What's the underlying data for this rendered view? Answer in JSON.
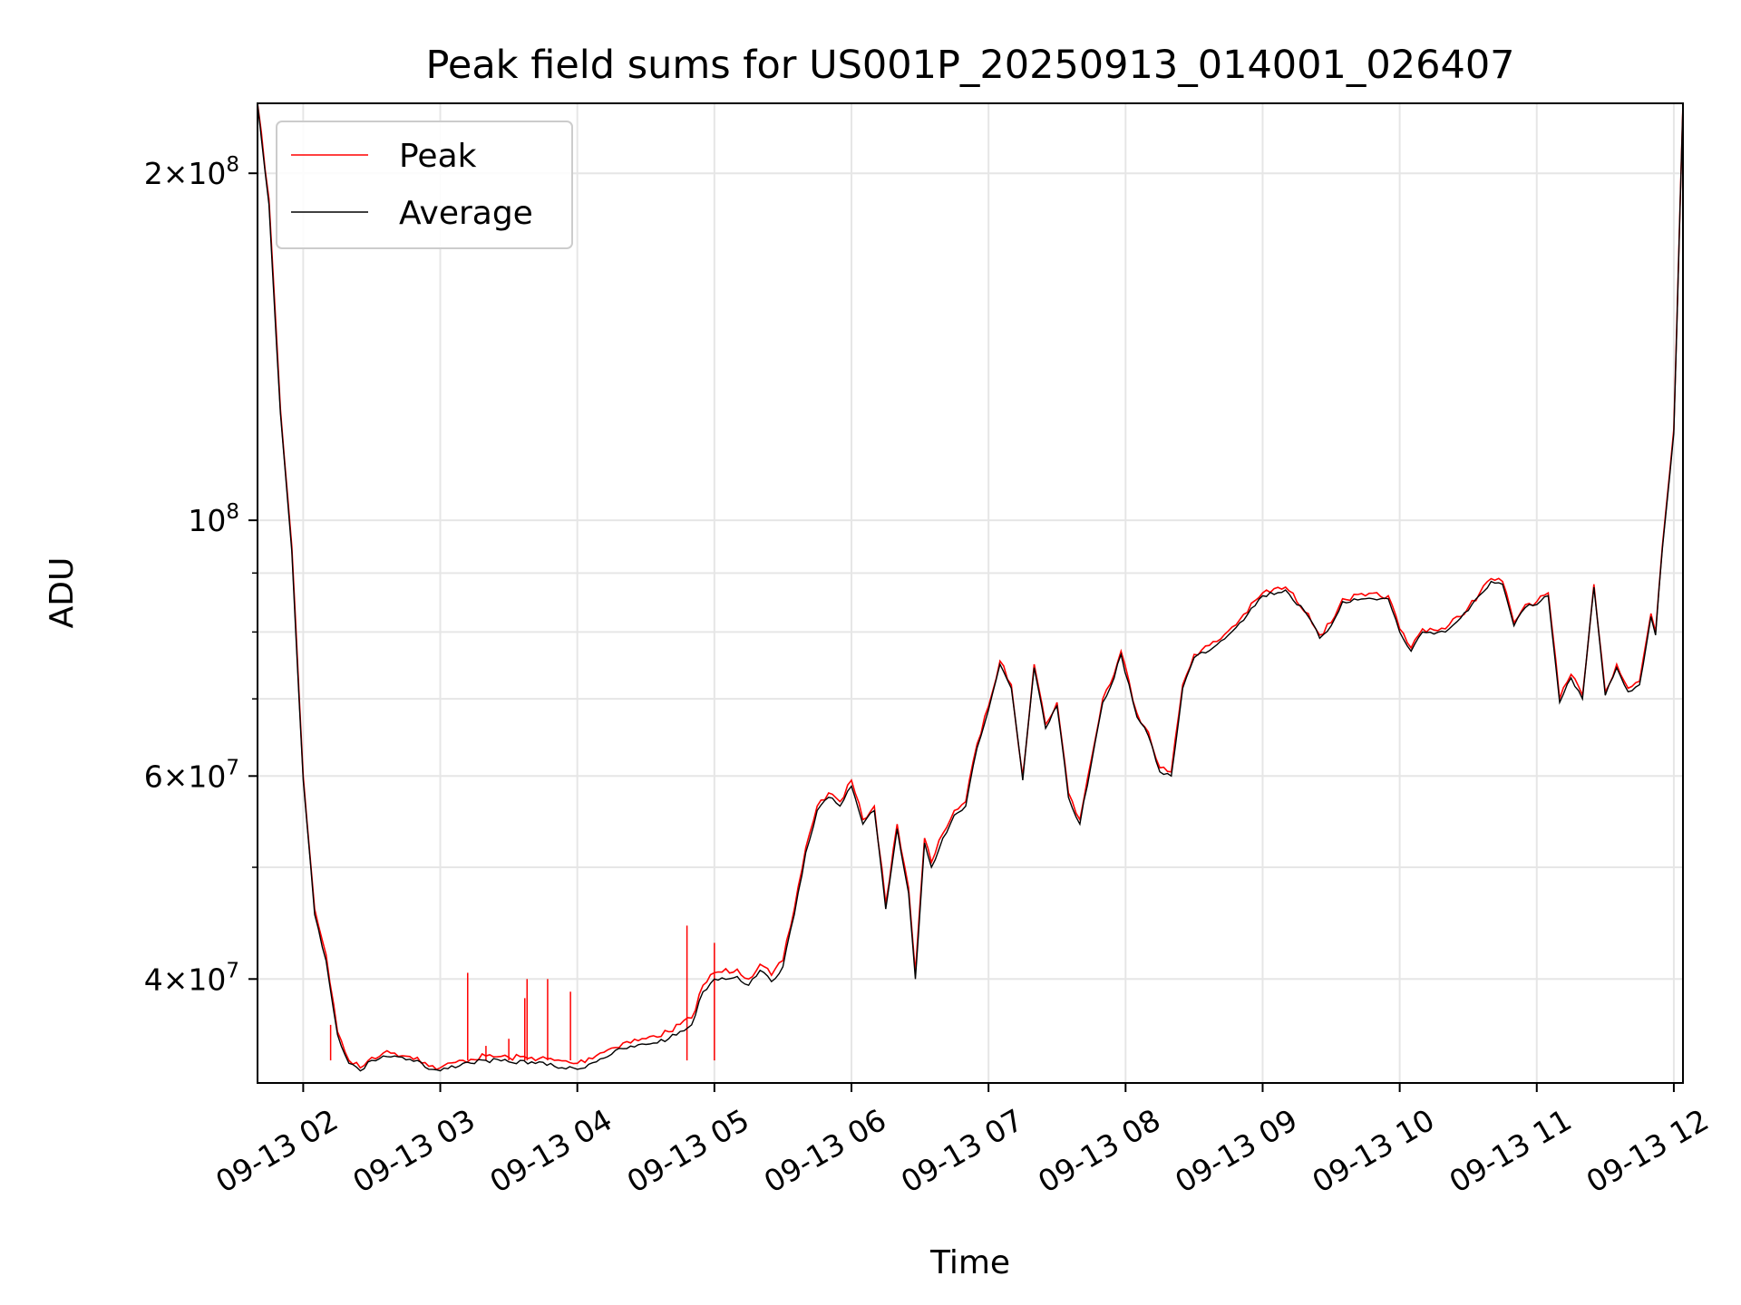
{
  "chart_data": {
    "type": "line",
    "title": "Peak field sums for US001P_20250913_014001_026407",
    "xlabel": "Time",
    "ylabel": "ADU",
    "yscale": "log",
    "ylim": [
      32500000,
      230000000
    ],
    "xlim": [
      "2025-09-13 01:40",
      "2025-09-13 12:04"
    ],
    "grid": true,
    "legend_position": "upper-left",
    "x_ticks": [
      {
        "x": "2025-09-13 02:00",
        "label": "09-13 02"
      },
      {
        "x": "2025-09-13 03:00",
        "label": "09-13 03"
      },
      {
        "x": "2025-09-13 04:00",
        "label": "09-13 04"
      },
      {
        "x": "2025-09-13 05:00",
        "label": "09-13 05"
      },
      {
        "x": "2025-09-13 06:00",
        "label": "09-13 06"
      },
      {
        "x": "2025-09-13 07:00",
        "label": "09-13 07"
      },
      {
        "x": "2025-09-13 08:00",
        "label": "09-13 08"
      },
      {
        "x": "2025-09-13 09:00",
        "label": "09-13 09"
      },
      {
        "x": "2025-09-13 10:00",
        "label": "09-13 10"
      },
      {
        "x": "2025-09-13 11:00",
        "label": "09-13 11"
      },
      {
        "x": "2025-09-13 12:00",
        "label": "09-13 12"
      }
    ],
    "y_ticks": [
      {
        "value": 40000000,
        "base": "4×10",
        "exp": "7"
      },
      {
        "value": 60000000,
        "base": "6×10",
        "exp": "7"
      },
      {
        "value": 100000000,
        "base": "10",
        "exp": "8"
      },
      {
        "value": 200000000,
        "base": "2×10",
        "exp": "8"
      }
    ],
    "y_minor_grid": [
      50000000,
      70000000,
      80000000,
      90000000
    ],
    "series": [
      {
        "name": "Peak",
        "color": "#ff0000",
        "points": [
          [
            "2025-09-13 01:40",
            230000000
          ],
          [
            "2025-09-13 01:45",
            190000000
          ],
          [
            "2025-09-13 01:50",
            125000000
          ],
          [
            "2025-09-13 01:55",
            95000000
          ],
          [
            "2025-09-13 02:00",
            60000000
          ],
          [
            "2025-09-13 02:05",
            46000000
          ],
          [
            "2025-09-13 02:10",
            42000000
          ],
          [
            "2025-09-13 02:15",
            36000000
          ],
          [
            "2025-09-13 02:20",
            34000000
          ],
          [
            "2025-09-13 02:25",
            33500000
          ],
          [
            "2025-09-13 02:30",
            34200000
          ],
          [
            "2025-09-13 02:35",
            34500000
          ],
          [
            "2025-09-13 02:40",
            34500000
          ],
          [
            "2025-09-13 02:50",
            34200000
          ],
          [
            "2025-09-13 02:55",
            33600000
          ],
          [
            "2025-09-13 03:00",
            33500000
          ],
          [
            "2025-09-13 03:10",
            34000000
          ],
          [
            "2025-09-13 03:20",
            34300000
          ],
          [
            "2025-09-13 03:30",
            34200000
          ],
          [
            "2025-09-13 03:40",
            34200000
          ],
          [
            "2025-09-13 03:50",
            34000000
          ],
          [
            "2025-09-13 04:00",
            33800000
          ],
          [
            "2025-09-13 04:10",
            34500000
          ],
          [
            "2025-09-13 04:20",
            35200000
          ],
          [
            "2025-09-13 04:30",
            35500000
          ],
          [
            "2025-09-13 04:40",
            36000000
          ],
          [
            "2025-09-13 04:50",
            37000000
          ],
          [
            "2025-09-13 04:55",
            39500000
          ],
          [
            "2025-09-13 05:00",
            40500000
          ],
          [
            "2025-09-13 05:10",
            40800000
          ],
          [
            "2025-09-13 05:15",
            40000000
          ],
          [
            "2025-09-13 05:20",
            41200000
          ],
          [
            "2025-09-13 05:25",
            40300000
          ],
          [
            "2025-09-13 05:30",
            41500000
          ],
          [
            "2025-09-13 05:35",
            46000000
          ],
          [
            "2025-09-13 05:40",
            52000000
          ],
          [
            "2025-09-13 05:45",
            56500000
          ],
          [
            "2025-09-13 05:50",
            58000000
          ],
          [
            "2025-09-13 05:55",
            57000000
          ],
          [
            "2025-09-13 06:00",
            59500000
          ],
          [
            "2025-09-13 06:05",
            55000000
          ],
          [
            "2025-09-13 06:10",
            56500000
          ],
          [
            "2025-09-13 06:15",
            46500000
          ],
          [
            "2025-09-13 06:20",
            54500000
          ],
          [
            "2025-09-13 06:25",
            48000000
          ],
          [
            "2025-09-13 06:28",
            40500000
          ],
          [
            "2025-09-13 06:32",
            53000000
          ],
          [
            "2025-09-13 06:35",
            50500000
          ],
          [
            "2025-09-13 06:40",
            53500000
          ],
          [
            "2025-09-13 06:45",
            56000000
          ],
          [
            "2025-09-13 06:50",
            57000000
          ],
          [
            "2025-09-13 06:55",
            64000000
          ],
          [
            "2025-09-13 07:00",
            69000000
          ],
          [
            "2025-09-13 07:05",
            75500000
          ],
          [
            "2025-09-13 07:10",
            72000000
          ],
          [
            "2025-09-13 07:15",
            60000000
          ],
          [
            "2025-09-13 07:20",
            75000000
          ],
          [
            "2025-09-13 07:25",
            66500000
          ],
          [
            "2025-09-13 07:30",
            69500000
          ],
          [
            "2025-09-13 07:35",
            58000000
          ],
          [
            "2025-09-13 07:40",
            55000000
          ],
          [
            "2025-09-13 07:45",
            62000000
          ],
          [
            "2025-09-13 07:50",
            70000000
          ],
          [
            "2025-09-13 07:55",
            73500000
          ],
          [
            "2025-09-13 07:58",
            77000000
          ],
          [
            "2025-09-13 08:05",
            68000000
          ],
          [
            "2025-09-13 08:10",
            65500000
          ],
          [
            "2025-09-13 08:15",
            61000000
          ],
          [
            "2025-09-13 08:20",
            60500000
          ],
          [
            "2025-09-13 08:25",
            72000000
          ],
          [
            "2025-09-13 08:30",
            76500000
          ],
          [
            "2025-09-13 08:40",
            78500000
          ],
          [
            "2025-09-13 08:50",
            82000000
          ],
          [
            "2025-09-13 09:00",
            86500000
          ],
          [
            "2025-09-13 09:10",
            87500000
          ],
          [
            "2025-09-13 09:20",
            83000000
          ],
          [
            "2025-09-13 09:25",
            79500000
          ],
          [
            "2025-09-13 09:30",
            81500000
          ],
          [
            "2025-09-13 09:35",
            85500000
          ],
          [
            "2025-09-13 09:45",
            86000000
          ],
          [
            "2025-09-13 09:55",
            86000000
          ],
          [
            "2025-09-13 10:00",
            80500000
          ],
          [
            "2025-09-13 10:05",
            77500000
          ],
          [
            "2025-09-13 10:10",
            80500000
          ],
          [
            "2025-09-13 10:20",
            80500000
          ],
          [
            "2025-09-13 10:30",
            84000000
          ],
          [
            "2025-09-13 10:40",
            89000000
          ],
          [
            "2025-09-13 10:45",
            88500000
          ],
          [
            "2025-09-13 10:50",
            81500000
          ],
          [
            "2025-09-13 10:55",
            84500000
          ],
          [
            "2025-09-13 11:00",
            85000000
          ],
          [
            "2025-09-13 11:05",
            86500000
          ],
          [
            "2025-09-13 11:10",
            70000000
          ],
          [
            "2025-09-13 11:15",
            73500000
          ],
          [
            "2025-09-13 11:20",
            70500000
          ],
          [
            "2025-09-13 11:25",
            88000000
          ],
          [
            "2025-09-13 11:30",
            71000000
          ],
          [
            "2025-09-13 11:35",
            75000000
          ],
          [
            "2025-09-13 11:40",
            71500000
          ],
          [
            "2025-09-13 11:45",
            72500000
          ],
          [
            "2025-09-13 11:50",
            83000000
          ],
          [
            "2025-09-13 11:52",
            80000000
          ],
          [
            "2025-09-13 11:55",
            95000000
          ],
          [
            "2025-09-13 12:00",
            120000000
          ],
          [
            "2025-09-13 12:04",
            230000000
          ]
        ],
        "spikes": [
          [
            "2025-09-13 02:12",
            36500000
          ],
          [
            "2025-09-13 03:12",
            40500000
          ],
          [
            "2025-09-13 03:20",
            35000000
          ],
          [
            "2025-09-13 03:30",
            35500000
          ],
          [
            "2025-09-13 03:37",
            38500000
          ],
          [
            "2025-09-13 03:38",
            40000000
          ],
          [
            "2025-09-13 03:47",
            40000000
          ],
          [
            "2025-09-13 03:57",
            39000000
          ],
          [
            "2025-09-13 04:48",
            44500000
          ],
          [
            "2025-09-13 05:00",
            43000000
          ]
        ]
      },
      {
        "name": "Average",
        "color": "#000000",
        "points": [
          [
            "2025-09-13 01:40",
            230000000
          ],
          [
            "2025-09-13 01:45",
            188000000
          ],
          [
            "2025-09-13 01:50",
            124000000
          ],
          [
            "2025-09-13 01:55",
            94000000
          ],
          [
            "2025-09-13 02:00",
            59500000
          ],
          [
            "2025-09-13 02:05",
            45500000
          ],
          [
            "2025-09-13 02:10",
            41500000
          ],
          [
            "2025-09-13 02:15",
            35800000
          ],
          [
            "2025-09-13 02:20",
            33800000
          ],
          [
            "2025-09-13 02:25",
            33300000
          ],
          [
            "2025-09-13 02:30",
            34000000
          ],
          [
            "2025-09-13 02:35",
            34300000
          ],
          [
            "2025-09-13 02:40",
            34300000
          ],
          [
            "2025-09-13 02:50",
            34000000
          ],
          [
            "2025-09-13 02:55",
            33400000
          ],
          [
            "2025-09-13 03:00",
            33300000
          ],
          [
            "2025-09-13 03:10",
            33800000
          ],
          [
            "2025-09-13 03:20",
            34000000
          ],
          [
            "2025-09-13 03:30",
            33900000
          ],
          [
            "2025-09-13 03:40",
            33900000
          ],
          [
            "2025-09-13 03:50",
            33600000
          ],
          [
            "2025-09-13 04:00",
            33400000
          ],
          [
            "2025-09-13 04:10",
            34100000
          ],
          [
            "2025-09-13 04:20",
            34800000
          ],
          [
            "2025-09-13 04:30",
            35100000
          ],
          [
            "2025-09-13 04:40",
            35500000
          ],
          [
            "2025-09-13 04:50",
            36500000
          ],
          [
            "2025-09-13 04:55",
            39000000
          ],
          [
            "2025-09-13 05:00",
            40000000
          ],
          [
            "2025-09-13 05:10",
            40200000
          ],
          [
            "2025-09-13 05:15",
            39500000
          ],
          [
            "2025-09-13 05:20",
            40700000
          ],
          [
            "2025-09-13 05:25",
            39800000
          ],
          [
            "2025-09-13 05:30",
            41000000
          ],
          [
            "2025-09-13 05:35",
            45500000
          ],
          [
            "2025-09-13 05:40",
            51500000
          ],
          [
            "2025-09-13 05:45",
            56000000
          ],
          [
            "2025-09-13 05:50",
            57500000
          ],
          [
            "2025-09-13 05:55",
            56500000
          ],
          [
            "2025-09-13 06:00",
            58800000
          ],
          [
            "2025-09-13 06:05",
            54500000
          ],
          [
            "2025-09-13 06:10",
            56000000
          ],
          [
            "2025-09-13 06:15",
            46000000
          ],
          [
            "2025-09-13 06:20",
            54000000
          ],
          [
            "2025-09-13 06:25",
            47500000
          ],
          [
            "2025-09-13 06:28",
            40000000
          ],
          [
            "2025-09-13 06:32",
            52500000
          ],
          [
            "2025-09-13 06:35",
            50000000
          ],
          [
            "2025-09-13 06:40",
            53000000
          ],
          [
            "2025-09-13 06:45",
            55500000
          ],
          [
            "2025-09-13 06:50",
            56500000
          ],
          [
            "2025-09-13 06:55",
            63500000
          ],
          [
            "2025-09-13 07:00",
            68500000
          ],
          [
            "2025-09-13 07:05",
            75000000
          ],
          [
            "2025-09-13 07:10",
            71500000
          ],
          [
            "2025-09-13 07:15",
            59500000
          ],
          [
            "2025-09-13 07:20",
            74500000
          ],
          [
            "2025-09-13 07:25",
            66000000
          ],
          [
            "2025-09-13 07:30",
            69000000
          ],
          [
            "2025-09-13 07:35",
            57500000
          ],
          [
            "2025-09-13 07:40",
            54500000
          ],
          [
            "2025-09-13 07:45",
            61500000
          ],
          [
            "2025-09-13 07:50",
            69500000
          ],
          [
            "2025-09-13 07:55",
            73000000
          ],
          [
            "2025-09-13 07:58",
            76500000
          ],
          [
            "2025-09-13 08:05",
            67500000
          ],
          [
            "2025-09-13 08:10",
            65000000
          ],
          [
            "2025-09-13 08:15",
            60500000
          ],
          [
            "2025-09-13 08:20",
            60000000
          ],
          [
            "2025-09-13 08:25",
            71500000
          ],
          [
            "2025-09-13 08:30",
            76000000
          ],
          [
            "2025-09-13 08:40",
            78000000
          ],
          [
            "2025-09-13 08:50",
            81500000
          ],
          [
            "2025-09-13 09:00",
            86000000
          ],
          [
            "2025-09-13 09:10",
            87000000
          ],
          [
            "2025-09-13 09:20",
            82500000
          ],
          [
            "2025-09-13 09:25",
            79000000
          ],
          [
            "2025-09-13 09:30",
            81000000
          ],
          [
            "2025-09-13 09:35",
            85000000
          ],
          [
            "2025-09-13 09:45",
            85500000
          ],
          [
            "2025-09-13 09:55",
            85500000
          ],
          [
            "2025-09-13 10:00",
            80000000
          ],
          [
            "2025-09-13 10:05",
            77000000
          ],
          [
            "2025-09-13 10:10",
            80000000
          ],
          [
            "2025-09-13 10:20",
            80000000
          ],
          [
            "2025-09-13 10:30",
            83500000
          ],
          [
            "2025-09-13 10:40",
            88500000
          ],
          [
            "2025-09-13 10:45",
            88000000
          ],
          [
            "2025-09-13 10:50",
            81000000
          ],
          [
            "2025-09-13 10:55",
            84000000
          ],
          [
            "2025-09-13 11:00",
            84500000
          ],
          [
            "2025-09-13 11:05",
            86000000
          ],
          [
            "2025-09-13 11:10",
            69500000
          ],
          [
            "2025-09-13 11:15",
            73000000
          ],
          [
            "2025-09-13 11:20",
            70000000
          ],
          [
            "2025-09-13 11:25",
            87500000
          ],
          [
            "2025-09-13 11:30",
            70500000
          ],
          [
            "2025-09-13 11:35",
            74500000
          ],
          [
            "2025-09-13 11:40",
            71000000
          ],
          [
            "2025-09-13 11:45",
            72000000
          ],
          [
            "2025-09-13 11:50",
            82500000
          ],
          [
            "2025-09-13 11:52",
            79500000
          ],
          [
            "2025-09-13 11:55",
            94500000
          ],
          [
            "2025-09-13 12:00",
            119000000
          ],
          [
            "2025-09-13 12:04",
            230000000
          ]
        ]
      }
    ],
    "legend": {
      "entries": [
        "Peak",
        "Average"
      ]
    }
  }
}
